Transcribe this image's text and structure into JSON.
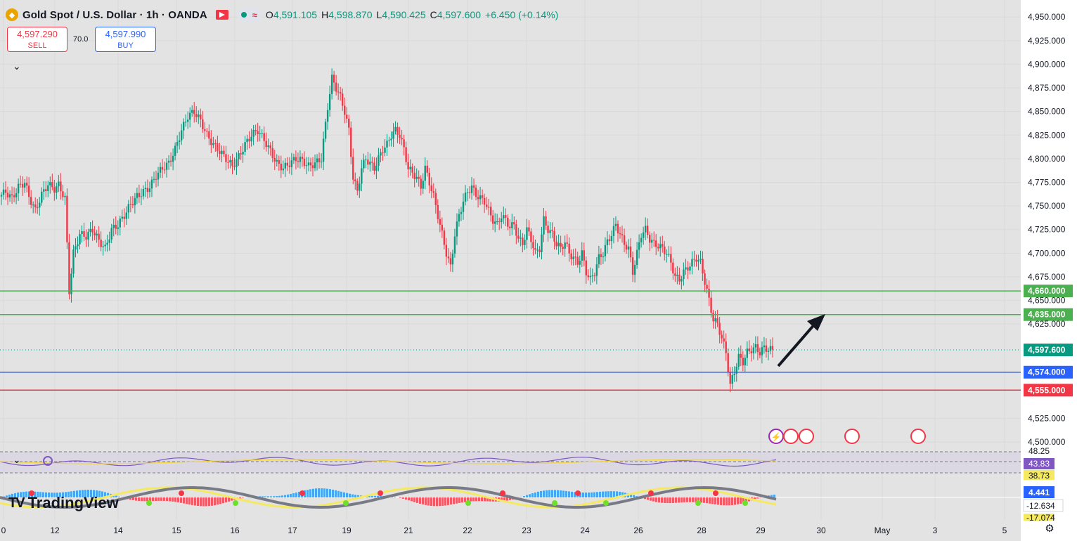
{
  "header": {
    "title": "Gold Spot / U.S. Dollar · 1h · OANDA",
    "ohlc": {
      "o_label": "O",
      "o": "4,591.105",
      "h_label": "H",
      "h": "4,598.870",
      "l_label": "L",
      "l": "4,590.425",
      "c_label": "C",
      "c": "4,597.600",
      "change": "+6.450 (+0.14%)"
    }
  },
  "trade": {
    "sell_price": "4,597.290",
    "sell_label": "SELL",
    "buy_price": "4,597.990",
    "buy_label": "BUY",
    "spread": "70.0"
  },
  "logo": "TradingView",
  "colors": {
    "up": "#089981",
    "down": "#f23645",
    "green_level": "#4caf50",
    "blue_level": "#2962ff",
    "red_level": "#f23645",
    "rsi": "#7e57c2"
  },
  "chart_data": [
    {
      "type": "line",
      "subtype": "candlestick",
      "x_ticks": [
        "0",
        "12",
        "14",
        "15",
        "16",
        "17",
        "19",
        "21",
        "22",
        "23",
        "24",
        "26",
        "28",
        "29",
        "30",
        "May",
        "3",
        "5"
      ],
      "price_ticks": [
        "4,950.000",
        "4,925.000",
        "4,900.000",
        "4,875.000",
        "4,850.000",
        "4,825.000",
        "4,800.000",
        "4,775.000",
        "4,750.000",
        "4,725.000",
        "4,700.000",
        "4,675.000",
        "4,650.000",
        "4,625.000",
        "4,525.000",
        "4,500.000"
      ],
      "ylim": [
        4492,
        4968
      ],
      "close_path": [
        [
          0,
          4760
        ],
        [
          3,
          4765
        ],
        [
          6,
          4758
        ],
        [
          9,
          4770
        ],
        [
          12,
          4775
        ],
        [
          14,
          4760
        ],
        [
          17,
          4745
        ],
        [
          20,
          4762
        ],
        [
          23,
          4773
        ],
        [
          26,
          4768
        ],
        [
          28,
          4772
        ],
        [
          31,
          4758
        ],
        [
          33,
          4660
        ],
        [
          35,
          4700
        ],
        [
          38,
          4720
        ],
        [
          41,
          4718
        ],
        [
          44,
          4725
        ],
        [
          47,
          4713
        ],
        [
          50,
          4705
        ],
        [
          53,
          4725
        ],
        [
          56,
          4730
        ],
        [
          59,
          4740
        ],
        [
          62,
          4752
        ],
        [
          65,
          4760
        ],
        [
          68,
          4765
        ],
        [
          71,
          4770
        ],
        [
          74,
          4782
        ],
        [
          77,
          4790
        ],
        [
          80,
          4795
        ],
        [
          83,
          4810
        ],
        [
          86,
          4830
        ],
        [
          89,
          4845
        ],
        [
          92,
          4850
        ],
        [
          95,
          4840
        ],
        [
          98,
          4825
        ],
        [
          101,
          4815
        ],
        [
          104,
          4808
        ],
        [
          107,
          4800
        ],
        [
          110,
          4792
        ],
        [
          113,
          4802
        ],
        [
          116,
          4815
        ],
        [
          119,
          4825
        ],
        [
          122,
          4830
        ],
        [
          125,
          4820
        ],
        [
          128,
          4808
        ],
        [
          131,
          4795
        ],
        [
          134,
          4790
        ],
        [
          137,
          4795
        ],
        [
          140,
          4800
        ],
        [
          143,
          4798
        ],
        [
          146,
          4792
        ],
        [
          149,
          4795
        ],
        [
          152,
          4800
        ],
        [
          155,
          4855
        ],
        [
          157,
          4885
        ],
        [
          159,
          4875
        ],
        [
          161,
          4865
        ],
        [
          163,
          4850
        ],
        [
          165,
          4830
        ],
        [
          167,
          4780
        ],
        [
          169,
          4765
        ],
        [
          171,
          4790
        ],
        [
          173,
          4800
        ],
        [
          175,
          4795
        ],
        [
          177,
          4790
        ],
        [
          179,
          4800
        ],
        [
          181,
          4810
        ],
        [
          183,
          4815
        ],
        [
          185,
          4825
        ],
        [
          187,
          4830
        ],
        [
          189,
          4825
        ],
        [
          191,
          4810
        ],
        [
          193,
          4790
        ],
        [
          195,
          4785
        ],
        [
          197,
          4780
        ],
        [
          199,
          4770
        ],
        [
          201,
          4790
        ],
        [
          203,
          4775
        ],
        [
          205,
          4760
        ],
        [
          207,
          4740
        ],
        [
          209,
          4720
        ],
        [
          211,
          4700
        ],
        [
          213,
          4685
        ],
        [
          215,
          4720
        ],
        [
          217,
          4740
        ],
        [
          219,
          4755
        ],
        [
          221,
          4765
        ],
        [
          223,
          4770
        ],
        [
          225,
          4762
        ],
        [
          227,
          4758
        ],
        [
          229,
          4755
        ],
        [
          231,
          4745
        ],
        [
          233,
          4735
        ],
        [
          235,
          4730
        ],
        [
          237,
          4740
        ],
        [
          239,
          4735
        ],
        [
          241,
          4728
        ],
        [
          243,
          4730
        ],
        [
          245,
          4715
        ],
        [
          247,
          4710
        ],
        [
          249,
          4725
        ],
        [
          251,
          4715
        ],
        [
          253,
          4700
        ],
        [
          255,
          4705
        ],
        [
          257,
          4735
        ],
        [
          259,
          4725
        ],
        [
          261,
          4720
        ],
        [
          263,
          4710
        ],
        [
          265,
          4705
        ],
        [
          267,
          4712
        ],
        [
          269,
          4700
        ],
        [
          271,
          4695
        ],
        [
          273,
          4690
        ],
        [
          275,
          4700
        ],
        [
          277,
          4680
        ],
        [
          279,
          4672
        ],
        [
          281,
          4680
        ],
        [
          283,
          4695
        ],
        [
          285,
          4700
        ],
        [
          287,
          4712
        ],
        [
          289,
          4720
        ],
        [
          291,
          4730
        ],
        [
          293,
          4720
        ],
        [
          295,
          4710
        ],
        [
          297,
          4705
        ],
        [
          299,
          4680
        ],
        [
          301,
          4700
        ],
        [
          303,
          4720
        ],
        [
          305,
          4725
        ],
        [
          307,
          4715
        ],
        [
          309,
          4710
        ],
        [
          311,
          4708
        ],
        [
          313,
          4705
        ],
        [
          315,
          4700
        ],
        [
          317,
          4690
        ],
        [
          319,
          4675
        ],
        [
          321,
          4672
        ],
        [
          323,
          4680
        ],
        [
          325,
          4685
        ],
        [
          327,
          4690
        ],
        [
          329,
          4695
        ],
        [
          331,
          4690
        ],
        [
          333,
          4670
        ],
        [
          335,
          4650
        ],
        [
          337,
          4630
        ],
        [
          339,
          4625
        ],
        [
          341,
          4610
        ],
        [
          343,
          4595
        ],
        [
          345,
          4560
        ],
        [
          347,
          4575
        ],
        [
          349,
          4590
        ],
        [
          351,
          4585
        ],
        [
          353,
          4595
        ],
        [
          355,
          4598
        ],
        [
          357,
          4600
        ],
        [
          359,
          4595
        ],
        [
          361,
          4600
        ],
        [
          363,
          4598
        ],
        [
          365,
          4597.6
        ]
      ],
      "x_max": 420
    },
    {
      "type": "line",
      "subtype": "levels",
      "values": [
        4660.0,
        4635.0,
        4597.6,
        4574.0,
        4555.0
      ],
      "labels": [
        "4,660.000",
        "4,635.000",
        "4,597.600",
        "4,574.000",
        "4,555.000"
      ]
    },
    {
      "type": "line",
      "subtype": "rsi",
      "band_labels": [
        "48.25",
        "43.83",
        "38.73"
      ]
    },
    {
      "type": "bar",
      "subtype": "oscillator",
      "labels": [
        "4.441",
        "-12.634",
        "-17.074"
      ]
    }
  ]
}
